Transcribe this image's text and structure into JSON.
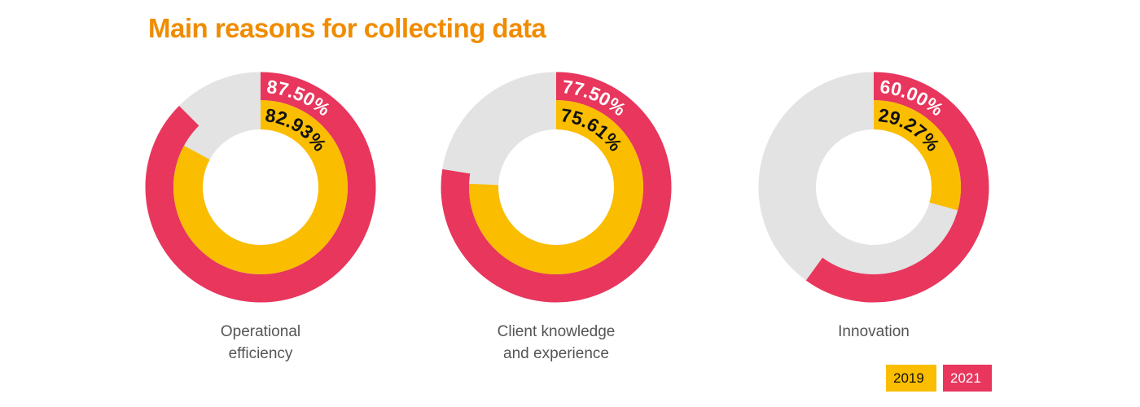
{
  "title": "Main reasons for collecting data",
  "colors": {
    "series_2019": "#fbbd00",
    "series_2021": "#e8365d",
    "track": "#e3e3e3",
    "title": "#f08c00"
  },
  "chart_data": {
    "type": "donut",
    "series": [
      {
        "name": "2019",
        "color": "#fbbd00"
      },
      {
        "name": "2021",
        "color": "#e8365d"
      }
    ],
    "charts": [
      {
        "label_lines": [
          "Operational",
          "efficiency"
        ],
        "values": {
          "2019": 82.93,
          "2021": 87.5
        },
        "value_labels": {
          "2019": "82.93%",
          "2021": "87.50%"
        }
      },
      {
        "label_lines": [
          "Client knowledge",
          "and experience"
        ],
        "values": {
          "2019": 75.61,
          "2021": 77.5
        },
        "value_labels": {
          "2019": "75.61%",
          "2021": "77.50%"
        }
      },
      {
        "label_lines": [
          "Innovation"
        ],
        "values": {
          "2019": 29.27,
          "2021": 60.0
        },
        "value_labels": {
          "2019": "29.27%",
          "2021": "60.00%"
        }
      }
    ]
  },
  "legend": {
    "item_2019": "2019",
    "item_2021": "2021"
  }
}
